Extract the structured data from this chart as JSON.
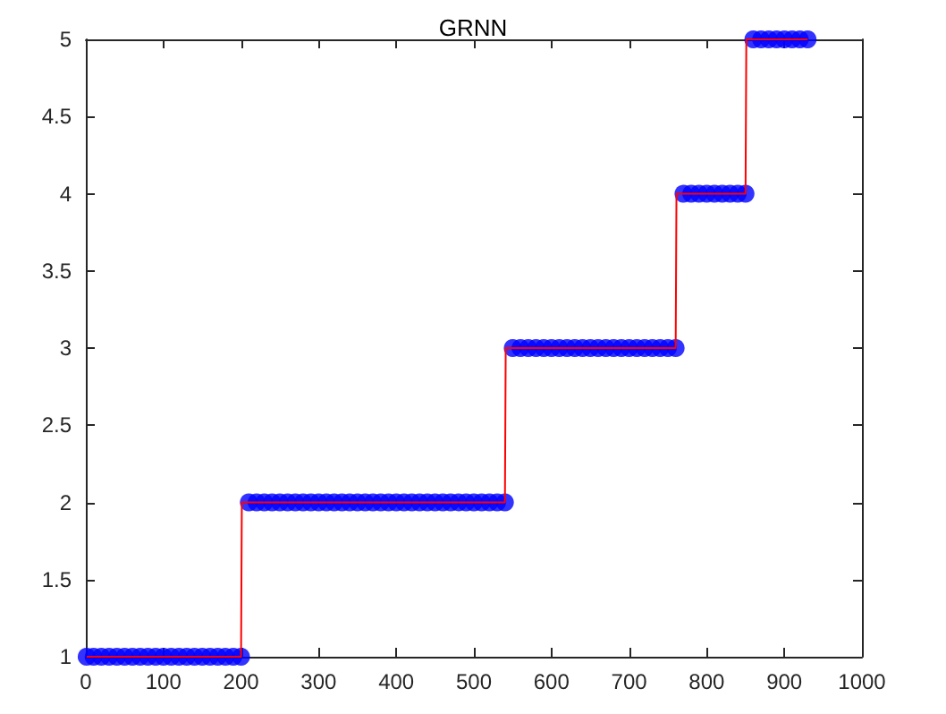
{
  "chart_data": {
    "type": "scatter",
    "title": "GRNN",
    "xlim": [
      0,
      1000
    ],
    "ylim": [
      1,
      5
    ],
    "xticks": [
      0,
      100,
      200,
      300,
      400,
      500,
      600,
      700,
      800,
      900,
      1000
    ],
    "yticks": [
      1,
      1.5,
      2,
      2.5,
      3,
      3.5,
      4,
      4.5,
      5
    ],
    "grid": false,
    "series": [
      {
        "color": "#0000ff",
        "marker": "circle",
        "x": [
          1,
          10,
          20,
          30,
          40,
          50,
          60,
          70,
          80,
          90,
          100,
          110,
          120,
          130,
          140,
          150,
          160,
          170,
          180,
          190,
          200,
          210,
          220,
          230,
          240,
          250,
          260,
          270,
          280,
          290,
          300,
          310,
          320,
          330,
          340,
          350,
          360,
          370,
          380,
          390,
          400,
          410,
          420,
          430,
          440,
          450,
          460,
          470,
          480,
          490,
          500,
          510,
          520,
          530,
          540,
          550,
          560,
          570,
          580,
          590,
          600,
          610,
          620,
          630,
          640,
          650,
          660,
          670,
          680,
          690,
          700,
          710,
          720,
          730,
          740,
          750,
          760,
          770,
          780,
          790,
          800,
          810,
          820,
          830,
          840,
          850,
          860,
          870,
          880,
          890,
          900,
          910,
          920,
          930
        ],
        "values": [
          1,
          1,
          1,
          1,
          1,
          1,
          1,
          1,
          1,
          1,
          1,
          1,
          1,
          1,
          1,
          1,
          1,
          1,
          1,
          1,
          1,
          2,
          2,
          2,
          2,
          2,
          2,
          2,
          2,
          2,
          2,
          2,
          2,
          2,
          2,
          2,
          2,
          2,
          2,
          2,
          2,
          2,
          2,
          2,
          2,
          2,
          2,
          2,
          2,
          2,
          2,
          2,
          2,
          2,
          2,
          3,
          3,
          3,
          3,
          3,
          3,
          3,
          3,
          3,
          3,
          3,
          3,
          3,
          3,
          3,
          3,
          3,
          3,
          3,
          3,
          3,
          3,
          4,
          4,
          4,
          4,
          4,
          4,
          4,
          4,
          4,
          5,
          5,
          5,
          5,
          5,
          5,
          5,
          5
        ]
      },
      {
        "type": "line",
        "color": "#ff0000",
        "marker": "none",
        "line_style": "solid",
        "x": [
          1,
          200,
          201,
          540,
          541,
          760,
          761,
          850,
          851,
          930
        ],
        "values": [
          1,
          1,
          2,
          2,
          3,
          3,
          4,
          4,
          5,
          5
        ]
      }
    ]
  }
}
